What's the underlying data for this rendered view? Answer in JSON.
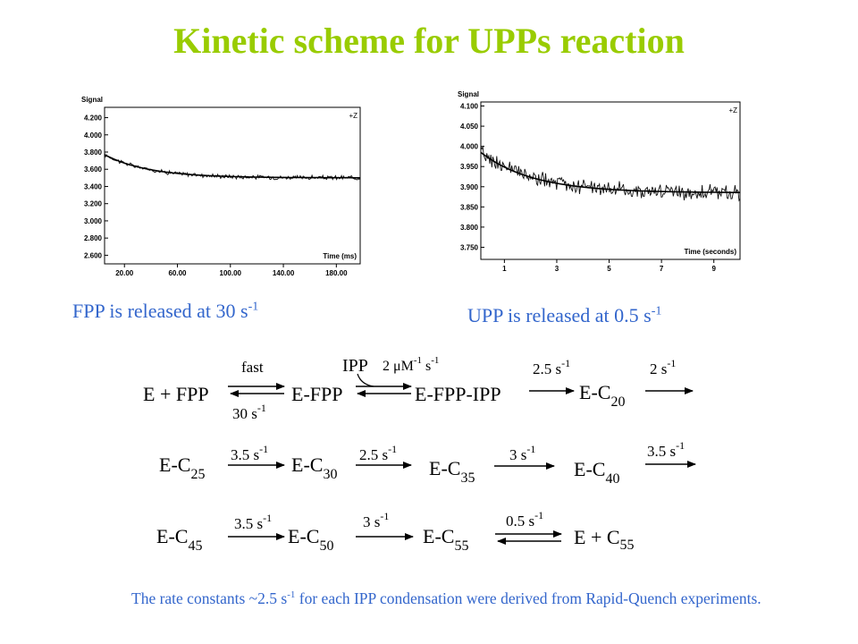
{
  "title": "Kinetic scheme for UPPs reaction",
  "captions": {
    "fpp": {
      "text": "FPP is released at 30 s",
      "sup": "-1"
    },
    "upp": {
      "text": "UPP is released at 0.5 s",
      "sup": "-1"
    }
  },
  "note": {
    "before": "The rate constants ~2.5 s",
    "sup": "-1",
    "after": " for each IPP condensation were derived from Rapid-Quench experiments."
  },
  "chart_data": [
    {
      "type": "line",
      "ylabel": "Signal",
      "xlabel": "Time (ms)",
      "corner_label": "+Z",
      "xlim": [
        5,
        198
      ],
      "ylim": [
        2.5,
        4.32
      ],
      "xticks": [
        20,
        60,
        100,
        140,
        180
      ],
      "xtick_labels": [
        "20.00",
        "60.00",
        "100.00",
        "140.00",
        "180.00"
      ],
      "yticks": [
        2.6,
        2.8,
        3.0,
        3.2,
        3.4,
        3.6,
        3.8,
        4.0,
        4.2
      ],
      "ytick_labels": [
        "2.600",
        "2.800",
        "3.000",
        "3.200",
        "3.400",
        "3.600",
        "3.800",
        "4.000",
        "4.200"
      ],
      "fit": {
        "plateau": 3.5,
        "amplitude": 0.27,
        "rate": 30,
        "time_unit_to_seconds": 0.001,
        "x_start": 5,
        "x_end": 198
      },
      "noise": 0.02,
      "grid": false
    },
    {
      "type": "line",
      "ylabel": "Signal",
      "xlabel": "Time (seconds)",
      "corner_label": "+Z",
      "xlim": [
        0.1,
        10.0
      ],
      "ylim": [
        3.72,
        4.11
      ],
      "xticks": [
        1,
        3,
        5,
        7,
        9
      ],
      "xtick_labels": [
        "1",
        "3",
        "5",
        "7",
        "9"
      ],
      "yticks": [
        3.75,
        3.8,
        3.85,
        3.9,
        3.95,
        4.0,
        4.05,
        4.1
      ],
      "ytick_labels": [
        "3.750",
        "3.800",
        "3.850",
        "3.900",
        "3.950",
        "4.000",
        "4.050",
        "4.100"
      ],
      "fit": {
        "plateau": 3.885,
        "amplitude": 0.1,
        "rate": 0.5,
        "time_unit_to_seconds": 1,
        "x_start": 0.1,
        "x_end": 10.0
      },
      "noise": 0.015,
      "grid": false
    }
  ],
  "scheme": {
    "row1": {
      "e_fpp": "E + FPP",
      "fast": "fast",
      "back_rate": "30 s",
      "back_sup": "-1",
      "e_fpp_complex": "E-FPP",
      "ipp": "IPP",
      "ipp_rate": "2 μM",
      "ipp_sup1": "-1",
      "ipp_rate_s": " s",
      "ipp_sup2": "-1",
      "e_fpp_ipp": "E-FPP-IPP",
      "r1": "2.5 s",
      "r1_sup": "-1",
      "c20": "E-C",
      "c20_sub": "20",
      "r2": "2 s",
      "r2_sup": "-1"
    },
    "row2": {
      "c25": "E-C",
      "c25_sub": "25",
      "r1": "3.5 s",
      "r1_sup": "-1",
      "c30": "E-C",
      "c30_sub": "30",
      "r2": "2.5 s",
      "r2_sup": "-1",
      "c35": "E-C",
      "c35_sub": "35",
      "r3": "3 s",
      "r3_sup": "-1",
      "c40": "E-C",
      "c40_sub": "40",
      "r4": "3.5 s",
      "r4_sup": "-1"
    },
    "row3": {
      "c45": "E-C",
      "c45_sub": "45",
      "r1": "3.5 s",
      "r1_sup": "-1",
      "c50": "E-C",
      "c50_sub": "50",
      "r2": "3 s",
      "r2_sup": "-1",
      "c55": "E-C",
      "c55_sub": "55",
      "r3": "0.5 s",
      "r3_sup": "-1",
      "final": "E + C",
      "final_sub": "55"
    }
  }
}
